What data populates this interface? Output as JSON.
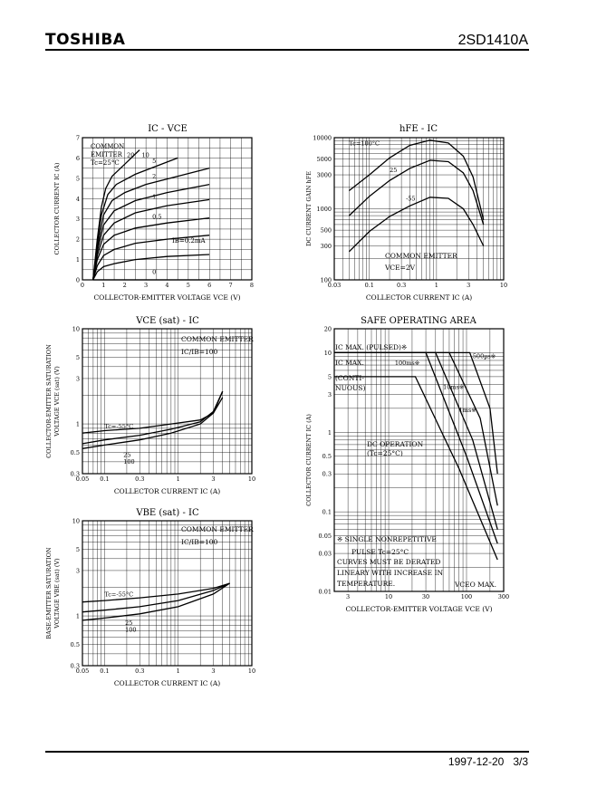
{
  "header": {
    "brand": "TOSHIBA",
    "part_number": "2SD1410A"
  },
  "footer": {
    "date": "1997-12-20",
    "page": "3/3"
  },
  "chart_data": [
    {
      "id": "ic-vce",
      "type": "line",
      "title": "IC - VCE",
      "xlabel": "COLLECTOR-EMITTER VOLTAGE VCE (V)",
      "ylabel": "COLLECTOR CURRENT IC (A)",
      "xlim": [
        0,
        8
      ],
      "ylim": [
        0,
        7
      ],
      "xticks": [
        "0",
        "1",
        "2",
        "3",
        "4",
        "5",
        "6",
        "7",
        "8"
      ],
      "yticks": [
        "0",
        "1",
        "2",
        "3",
        "4",
        "5",
        "6",
        "7"
      ],
      "notes": [
        "COMMON",
        "EMITTER",
        "Tc=25°C",
        "IB=0.2mA"
      ],
      "series": [
        {
          "name": "20",
          "points": [
            [
              0.5,
              0
            ],
            [
              0.7,
              2.0
            ],
            [
              0.9,
              3.6
            ],
            [
              1.1,
              4.5
            ],
            [
              1.4,
              5.1
            ],
            [
              2.0,
              5.7
            ],
            [
              2.7,
              6.4
            ]
          ]
        },
        {
          "name": "10",
          "points": [
            [
              0.5,
              0
            ],
            [
              0.7,
              1.8
            ],
            [
              0.9,
              3.2
            ],
            [
              1.2,
              4.2
            ],
            [
              1.6,
              4.7
            ],
            [
              2.5,
              5.2
            ],
            [
              3.5,
              5.6
            ],
            [
              4.5,
              6.0
            ]
          ]
        },
        {
          "name": "5",
          "points": [
            [
              0.5,
              0
            ],
            [
              0.7,
              1.6
            ],
            [
              1.0,
              3.2
            ],
            [
              1.4,
              3.9
            ],
            [
              2.0,
              4.3
            ],
            [
              3.0,
              4.7
            ],
            [
              4.5,
              5.1
            ],
            [
              6.0,
              5.5
            ]
          ]
        },
        {
          "name": "2",
          "points": [
            [
              0.5,
              0
            ],
            [
              0.7,
              1.4
            ],
            [
              1.0,
              2.7
            ],
            [
              1.5,
              3.4
            ],
            [
              2.5,
              3.9
            ],
            [
              4.0,
              4.3
            ],
            [
              6.0,
              4.7
            ]
          ]
        },
        {
          "name": "1",
          "points": [
            [
              0.5,
              0
            ],
            [
              0.7,
              1.2
            ],
            [
              1.0,
              2.2
            ],
            [
              1.5,
              2.8
            ],
            [
              2.5,
              3.3
            ],
            [
              4.0,
              3.65
            ],
            [
              6.0,
              3.95
            ]
          ]
        },
        {
          "name": "0.5",
          "points": [
            [
              0.5,
              0
            ],
            [
              0.7,
              1.0
            ],
            [
              1.0,
              1.75
            ],
            [
              1.5,
              2.2
            ],
            [
              2.5,
              2.55
            ],
            [
              4.0,
              2.8
            ],
            [
              6.0,
              3.05
            ]
          ]
        },
        {
          "name": "",
          "points": [
            [
              0.5,
              0
            ],
            [
              0.7,
              0.7
            ],
            [
              1.0,
              1.2
            ],
            [
              1.5,
              1.5
            ],
            [
              2.5,
              1.8
            ],
            [
              4.0,
              2.0
            ],
            [
              6.0,
              2.2
            ]
          ]
        },
        {
          "name": "",
          "points": [
            [
              0.5,
              0
            ],
            [
              0.7,
              0.4
            ],
            [
              1.0,
              0.65
            ],
            [
              1.5,
              0.8
            ],
            [
              2.5,
              1.0
            ],
            [
              4.0,
              1.15
            ],
            [
              6.0,
              1.25
            ]
          ]
        },
        {
          "name": "0",
          "points": [
            [
              0.5,
              0
            ],
            [
              6.0,
              0
            ]
          ]
        }
      ],
      "labels": [
        {
          "text": "20",
          "x": 2.1,
          "y": 6.05
        },
        {
          "text": "10",
          "x": 2.8,
          "y": 6.05
        },
        {
          "text": "5",
          "x": 3.3,
          "y": 5.75
        },
        {
          "text": "2",
          "x": 3.3,
          "y": 5.0
        },
        {
          "text": "1",
          "x": 3.3,
          "y": 4.0
        },
        {
          "text": "0.5",
          "x": 3.3,
          "y": 3.0
        },
        {
          "text": "0",
          "x": 3.3,
          "y": 0.3
        }
      ]
    },
    {
      "id": "hfe-ic",
      "type": "line",
      "title": "hFE - IC",
      "xlabel": "COLLECTOR CURRENT IC (A)",
      "ylabel": "DC CURRENT GAIN hFE",
      "xscale": "log",
      "yscale": "log",
      "xlim": [
        0.03,
        10
      ],
      "ylim": [
        100,
        10000
      ],
      "xticks": [
        "0.03",
        "0.1",
        "0.3",
        "1",
        "3",
        "10"
      ],
      "yticks": [
        "100",
        "300",
        "500",
        "1000",
        "3000",
        "5000",
        "10000"
      ],
      "notes": [
        "COMMON EMITTER",
        "VCE=2V"
      ],
      "series": [
        {
          "name": "Tc=100°C",
          "points": [
            [
              0.05,
              1800
            ],
            [
              0.1,
              3000
            ],
            [
              0.2,
              5200
            ],
            [
              0.4,
              7800
            ],
            [
              0.8,
              9200
            ],
            [
              1.5,
              8400
            ],
            [
              2.5,
              5500
            ],
            [
              3.5,
              2800
            ],
            [
              5,
              700
            ]
          ]
        },
        {
          "name": "25",
          "points": [
            [
              0.05,
              800
            ],
            [
              0.1,
              1500
            ],
            [
              0.2,
              2500
            ],
            [
              0.4,
              3700
            ],
            [
              0.8,
              4800
            ],
            [
              1.5,
              4600
            ],
            [
              2.5,
              3200
            ],
            [
              3.5,
              1800
            ],
            [
              5,
              600
            ]
          ]
        },
        {
          "name": "-55",
          "points": [
            [
              0.05,
              250
            ],
            [
              0.1,
              480
            ],
            [
              0.2,
              780
            ],
            [
              0.4,
              1100
            ],
            [
              0.8,
              1450
            ],
            [
              1.5,
              1400
            ],
            [
              2.5,
              1000
            ],
            [
              3.5,
              600
            ],
            [
              5,
              300
            ]
          ]
        }
      ],
      "labels": [
        {
          "text": "Tc=100°C",
          "x": 0.05,
          "y": 7800
        },
        {
          "text": "25",
          "x": 0.2,
          "y": 3300
        },
        {
          "text": "-55",
          "x": 0.35,
          "y": 1300
        }
      ]
    },
    {
      "id": "vcesat-ic",
      "type": "line",
      "title": "VCE (sat) - IC",
      "xlabel": "COLLECTOR CURRENT IC (A)",
      "ylabel": "COLLECTOR-EMITTER SATURATION VOLTAGE VCE (sat) (V)",
      "xscale": "log",
      "yscale": "log",
      "xlim": [
        0.05,
        10
      ],
      "ylim": [
        0.3,
        10
      ],
      "xticks": [
        "0.05",
        "0.1",
        "0.3",
        "1",
        "3",
        "10"
      ],
      "yticks": [
        "0.3",
        "0.5",
        "1",
        "3",
        "5",
        "10"
      ],
      "notes": [
        "COMMON EMITTER",
        "IC/IB=100"
      ],
      "series": [
        {
          "name": "Tc=-55°C",
          "points": [
            [
              0.05,
              0.8
            ],
            [
              0.1,
              0.85
            ],
            [
              0.3,
              0.9
            ],
            [
              0.8,
              1.0
            ],
            [
              2,
              1.1
            ],
            [
              3,
              1.3
            ],
            [
              4,
              1.9
            ]
          ]
        },
        {
          "name": "25",
          "points": [
            [
              0.05,
              0.62
            ],
            [
              0.1,
              0.68
            ],
            [
              0.3,
              0.76
            ],
            [
              0.8,
              0.88
            ],
            [
              2,
              1.05
            ],
            [
              3,
              1.35
            ],
            [
              4,
              2.2
            ]
          ]
        },
        {
          "name": "100",
          "points": [
            [
              0.05,
              0.55
            ],
            [
              0.1,
              0.6
            ],
            [
              0.3,
              0.68
            ],
            [
              0.8,
              0.8
            ],
            [
              2,
              1.0
            ],
            [
              3,
              1.3
            ],
            [
              4,
              2.2
            ]
          ]
        }
      ],
      "labels": [
        {
          "text": "Tc=-55°C",
          "x": 0.1,
          "y": 0.9
        },
        {
          "text": "25",
          "x": 0.18,
          "y": 0.45
        },
        {
          "text": "100",
          "x": 0.18,
          "y": 0.38
        }
      ]
    },
    {
      "id": "vbesat-ic",
      "type": "line",
      "title": "VBE (sat) - IC",
      "xlabel": "COLLECTOR CURRENT IC (A)",
      "ylabel": "BASE-EMITTER SATURATION VOLTAGE VBE (sat) (V)",
      "xscale": "log",
      "yscale": "log",
      "xlim": [
        0.05,
        10
      ],
      "ylim": [
        0.3,
        10
      ],
      "xticks": [
        "0.05",
        "0.1",
        "0.3",
        "1",
        "3",
        "10"
      ],
      "yticks": [
        "0.3",
        "0.5",
        "1",
        "3",
        "5",
        "10"
      ],
      "notes": [
        "COMMON EMITTER",
        "IC/IB=100"
      ],
      "series": [
        {
          "name": "Tc=-55°C",
          "points": [
            [
              0.05,
              1.4
            ],
            [
              0.1,
              1.45
            ],
            [
              0.3,
              1.55
            ],
            [
              1,
              1.7
            ],
            [
              3,
              1.95
            ],
            [
              5,
              2.2
            ]
          ]
        },
        {
          "name": "25",
          "points": [
            [
              0.05,
              1.1
            ],
            [
              0.1,
              1.15
            ],
            [
              0.3,
              1.25
            ],
            [
              1,
              1.45
            ],
            [
              3,
              1.85
            ],
            [
              5,
              2.2
            ]
          ]
        },
        {
          "name": "100",
          "points": [
            [
              0.05,
              0.9
            ],
            [
              0.1,
              0.95
            ],
            [
              0.3,
              1.05
            ],
            [
              1,
              1.25
            ],
            [
              3,
              1.7
            ],
            [
              5,
              2.2
            ]
          ]
        }
      ],
      "labels": [
        {
          "text": "Tc=-55°C",
          "x": 0.1,
          "y": 1.6
        },
        {
          "text": "25",
          "x": 0.19,
          "y": 0.8
        },
        {
          "text": "100",
          "x": 0.19,
          "y": 0.68
        }
      ]
    },
    {
      "id": "soa",
      "type": "line",
      "title": "SAFE OPERATING AREA",
      "xlabel": "COLLECTOR-EMITTER VOLTAGE VCE (V)",
      "ylabel": "COLLECTOR CURRENT IC (A)",
      "xscale": "log",
      "yscale": "log",
      "xlim": [
        2,
        300
      ],
      "ylim": [
        0.01,
        20
      ],
      "xticks": [
        "3",
        "10",
        "30",
        "100",
        "300"
      ],
      "yticks": [
        "0.01",
        "0.03",
        "0.05",
        "0.1",
        "0.3",
        "0.5",
        "1",
        "3",
        "5",
        "10",
        "20"
      ],
      "notes": [
        "IC MAX. (PULSED)※",
        "IC MAX.",
        "(CONTI-",
        "NUOUS)",
        "DC OPERATION",
        "(Tc=25°C)",
        "※ SINGLE NONREPETITIVE",
        "PULSE Tc=25°C",
        "CURVES MUST BE DERATED",
        "LINEARY WITH INCREASE IN",
        "TEMPERATURE.",
        "VCEO MAX."
      ],
      "series": [
        {
          "name": "500µs※",
          "points": [
            [
              2,
              10
            ],
            [
              110,
              10
            ],
            [
              200,
              2
            ],
            [
              250,
              0.3
            ]
          ]
        },
        {
          "name": "1ms※",
          "points": [
            [
              2,
              10
            ],
            [
              60,
              10
            ],
            [
              150,
              1.5
            ],
            [
              250,
              0.12
            ]
          ]
        },
        {
          "name": "10ms※",
          "points": [
            [
              2,
              10
            ],
            [
              40,
              10
            ],
            [
              120,
              0.8
            ],
            [
              250,
              0.06
            ]
          ]
        },
        {
          "name": "100ms※",
          "points": [
            [
              2,
              10
            ],
            [
              30,
              10
            ],
            [
              100,
              0.5
            ],
            [
              250,
              0.04
            ]
          ]
        },
        {
          "name": "DC",
          "points": [
            [
              2,
              5
            ],
            [
              22,
              5
            ],
            [
              80,
              0.35
            ],
            [
              250,
              0.025
            ]
          ]
        }
      ],
      "labels": [
        {
          "text": "500µs※",
          "x": 120,
          "y": 8.5
        },
        {
          "text": "1ms※",
          "x": 80,
          "y": 1.8
        },
        {
          "text": "10ms※",
          "x": 50,
          "y": 3.5
        },
        {
          "text": "100ms※",
          "x": 12,
          "y": 7
        }
      ]
    }
  ]
}
